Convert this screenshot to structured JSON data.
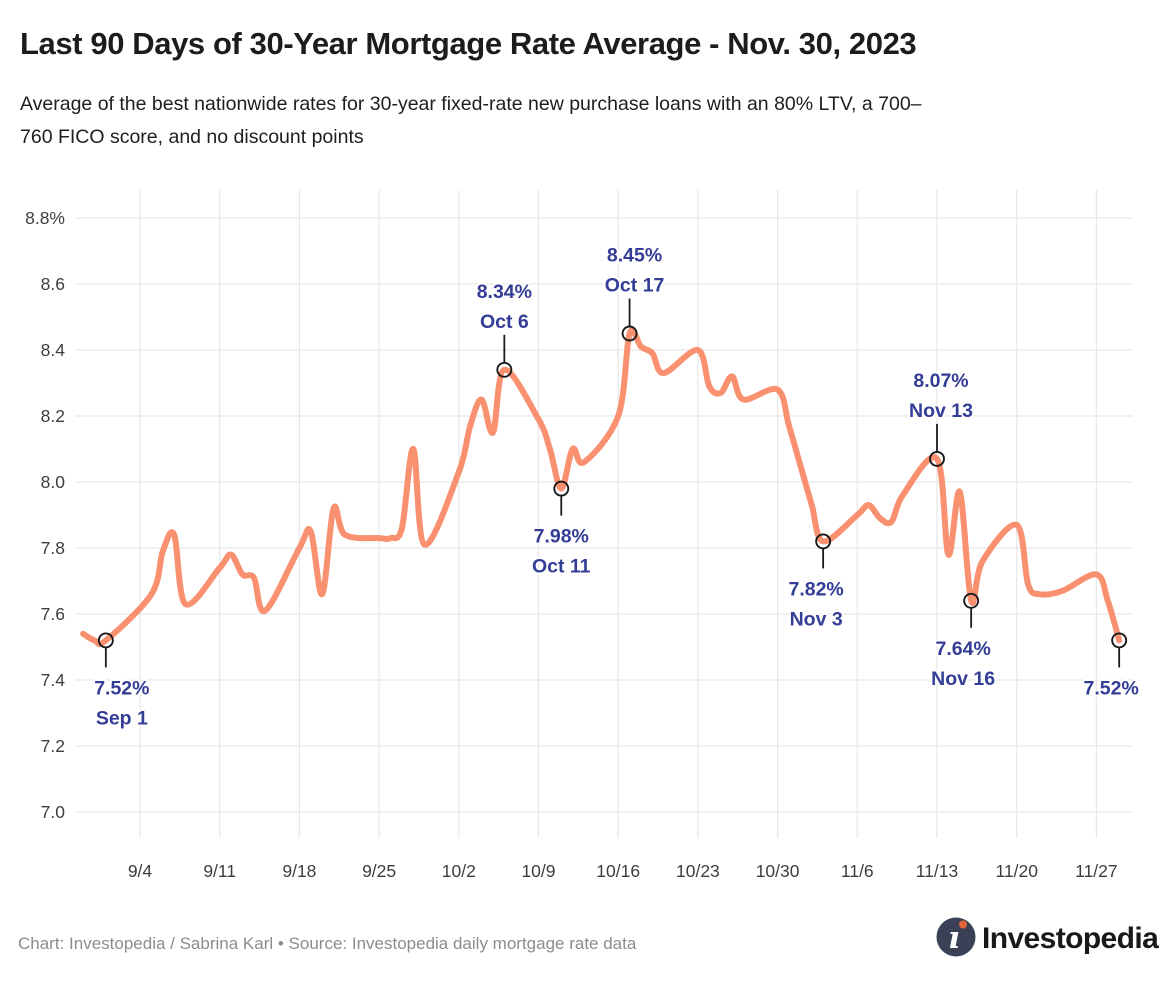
{
  "header": {
    "title": "Last 90 Days of 30-Year Mortgage Rate Average - Nov. 30, 2023",
    "subtitle_lines": [
      "Average of the best nationwide rates for 30-year fixed-rate new purchase loans with an 80% LTV, a 700–",
      "760 FICO score, and no discount points"
    ]
  },
  "footer": {
    "credit": "Chart: Investopedia / Sabrina Karl • Source: Investopedia daily mortgage rate data",
    "logo_text": "Investopedia",
    "logo_i": "ı"
  },
  "chart_data": {
    "type": "line",
    "title": "Last 90 Days of 30-Year Mortgage Rate Average - Nov. 30, 2023",
    "xlabel": "",
    "ylabel": "",
    "unit": "percent",
    "ylim": [
      7.0,
      8.8
    ],
    "x_range": [
      "Sep 1",
      "Nov 30"
    ],
    "grid": true,
    "legend": "none",
    "line_color": "#F99170",
    "grid_color": "#E7E7E7",
    "marker_stroke": "#1a1a1a",
    "annotation_color": "#333D96",
    "y_ticks": [
      {
        "label": "8.8%",
        "value": 8.8
      },
      {
        "label": "8.6",
        "value": 8.6
      },
      {
        "label": "8.4",
        "value": 8.4
      },
      {
        "label": "8.2",
        "value": 8.2
      },
      {
        "label": "8.0",
        "value": 8.0
      },
      {
        "label": "7.8",
        "value": 7.8
      },
      {
        "label": "7.6",
        "value": 7.6
      },
      {
        "label": "7.4",
        "value": 7.4
      },
      {
        "label": "7.2",
        "value": 7.2
      },
      {
        "label": "7.0",
        "value": 7.0
      }
    ],
    "x_ticks": [
      {
        "label": "9/4",
        "day": 3
      },
      {
        "label": "9/11",
        "day": 10
      },
      {
        "label": "9/18",
        "day": 17
      },
      {
        "label": "9/25",
        "day": 24
      },
      {
        "label": "10/2",
        "day": 31
      },
      {
        "label": "10/9",
        "day": 38
      },
      {
        "label": "10/16",
        "day": 45
      },
      {
        "label": "10/23",
        "day": 52
      },
      {
        "label": "10/30",
        "day": 59
      },
      {
        "label": "11/6",
        "day": 66
      },
      {
        "label": "11/13",
        "day": 73
      },
      {
        "label": "11/20",
        "day": 80
      },
      {
        "label": "11/27",
        "day": 87
      }
    ],
    "series": [
      {
        "date": "Aug 30",
        "day": -2,
        "value": 7.54
      },
      {
        "date": "Aug 31",
        "day": -1,
        "value": 7.52
      },
      {
        "date": "Sep 1",
        "day": 0,
        "value": 7.52
      },
      {
        "date": "Sep 5",
        "day": 4,
        "value": 7.66
      },
      {
        "date": "Sep 6",
        "day": 5,
        "value": 7.79
      },
      {
        "date": "Sep 7",
        "day": 6,
        "value": 7.84
      },
      {
        "date": "Sep 8",
        "day": 7,
        "value": 7.63
      },
      {
        "date": "Sep 11",
        "day": 10,
        "value": 7.74
      },
      {
        "date": "Sep 12",
        "day": 11,
        "value": 7.78
      },
      {
        "date": "Sep 13",
        "day": 12,
        "value": 7.72
      },
      {
        "date": "Sep 14",
        "day": 13,
        "value": 7.71
      },
      {
        "date": "Sep 15",
        "day": 14,
        "value": 7.61
      },
      {
        "date": "Sep 18",
        "day": 17,
        "value": 7.8
      },
      {
        "date": "Sep 19",
        "day": 18,
        "value": 7.85
      },
      {
        "date": "Sep 20",
        "day": 19,
        "value": 7.66
      },
      {
        "date": "Sep 21",
        "day": 20,
        "value": 7.92
      },
      {
        "date": "Sep 22",
        "day": 21,
        "value": 7.84
      },
      {
        "date": "Sep 25",
        "day": 24,
        "value": 7.83
      },
      {
        "date": "Sep 26",
        "day": 25,
        "value": 7.83
      },
      {
        "date": "Sep 27",
        "day": 26,
        "value": 7.86
      },
      {
        "date": "Sep 28",
        "day": 27,
        "value": 8.1
      },
      {
        "date": "Sep 29",
        "day": 28,
        "value": 7.81
      },
      {
        "date": "Oct 2",
        "day": 31,
        "value": 8.03
      },
      {
        "date": "Oct 3",
        "day": 32,
        "value": 8.17
      },
      {
        "date": "Oct 4",
        "day": 33,
        "value": 8.25
      },
      {
        "date": "Oct 5",
        "day": 34,
        "value": 8.15
      },
      {
        "date": "Oct 6",
        "day": 35,
        "value": 8.34
      },
      {
        "date": "Oct 9",
        "day": 38,
        "value": 8.19
      },
      {
        "date": "Oct 10",
        "day": 39,
        "value": 8.1
      },
      {
        "date": "Oct 11",
        "day": 40,
        "value": 7.98
      },
      {
        "date": "Oct 12",
        "day": 41,
        "value": 8.1
      },
      {
        "date": "Oct 13",
        "day": 42,
        "value": 8.06
      },
      {
        "date": "Oct 16",
        "day": 45,
        "value": 8.2
      },
      {
        "date": "Oct 17",
        "day": 46,
        "value": 8.45
      },
      {
        "date": "Oct 18",
        "day": 47,
        "value": 8.41
      },
      {
        "date": "Oct 19",
        "day": 48,
        "value": 8.39
      },
      {
        "date": "Oct 20",
        "day": 49,
        "value": 8.33
      },
      {
        "date": "Oct 23",
        "day": 52,
        "value": 8.4
      },
      {
        "date": "Oct 24",
        "day": 53,
        "value": 8.29
      },
      {
        "date": "Oct 25",
        "day": 54,
        "value": 8.27
      },
      {
        "date": "Oct 26",
        "day": 55,
        "value": 8.32
      },
      {
        "date": "Oct 27",
        "day": 56,
        "value": 8.25
      },
      {
        "date": "Oct 30",
        "day": 59,
        "value": 8.28
      },
      {
        "date": "Oct 31",
        "day": 60,
        "value": 8.17
      },
      {
        "date": "Nov 1",
        "day": 61,
        "value": 8.05
      },
      {
        "date": "Nov 2",
        "day": 62,
        "value": 7.93
      },
      {
        "date": "Nov 3",
        "day": 63,
        "value": 7.82
      },
      {
        "date": "Nov 6",
        "day": 66,
        "value": 7.9
      },
      {
        "date": "Nov 7",
        "day": 67,
        "value": 7.93
      },
      {
        "date": "Nov 8",
        "day": 68,
        "value": 7.89
      },
      {
        "date": "Nov 9",
        "day": 69,
        "value": 7.88
      },
      {
        "date": "Nov 10",
        "day": 70,
        "value": 7.96
      },
      {
        "date": "Nov 13",
        "day": 73,
        "value": 8.07
      },
      {
        "date": "Nov 14",
        "day": 74,
        "value": 7.78
      },
      {
        "date": "Nov 15",
        "day": 75,
        "value": 7.97
      },
      {
        "date": "Nov 16",
        "day": 76,
        "value": 7.64
      },
      {
        "date": "Nov 17",
        "day": 77,
        "value": 7.76
      },
      {
        "date": "Nov 20",
        "day": 80,
        "value": 7.87
      },
      {
        "date": "Nov 21",
        "day": 81,
        "value": 7.69
      },
      {
        "date": "Nov 22",
        "day": 82,
        "value": 7.66
      },
      {
        "date": "Nov 24",
        "day": 84,
        "value": 7.67
      },
      {
        "date": "Nov 27",
        "day": 87,
        "value": 7.72
      },
      {
        "date": "Nov 28",
        "day": 88,
        "value": 7.64
      },
      {
        "date": "Nov 29",
        "day": 89,
        "value": 7.52
      }
    ],
    "annotations": [
      {
        "rate": "7.52%",
        "date": "Sep 1",
        "day": 0,
        "value": 7.52,
        "side": "below",
        "dx": 16
      },
      {
        "rate": "8.34%",
        "date": "Oct 6",
        "day": 35,
        "value": 8.34,
        "side": "above",
        "dx": 0
      },
      {
        "rate": "7.98%",
        "date": "Oct 11",
        "day": 40,
        "value": 7.98,
        "side": "below",
        "dx": 0
      },
      {
        "rate": "8.45%",
        "date": "Oct 17",
        "day": 46,
        "value": 8.45,
        "side": "above",
        "dx": 5
      },
      {
        "rate": "7.82%",
        "date": "Nov 3",
        "day": 63,
        "value": 7.82,
        "side": "below",
        "dx": -7
      },
      {
        "rate": "8.07%",
        "date": "Nov 13",
        "day": 73,
        "value": 8.07,
        "side": "above",
        "dx": 4
      },
      {
        "rate": "7.64%",
        "date": "Nov 16",
        "day": 76,
        "value": 7.64,
        "side": "below",
        "dx": -8
      },
      {
        "rate": "7.52%",
        "date": "",
        "day": 89,
        "value": 7.52,
        "side": "below",
        "dx": -8
      }
    ]
  }
}
